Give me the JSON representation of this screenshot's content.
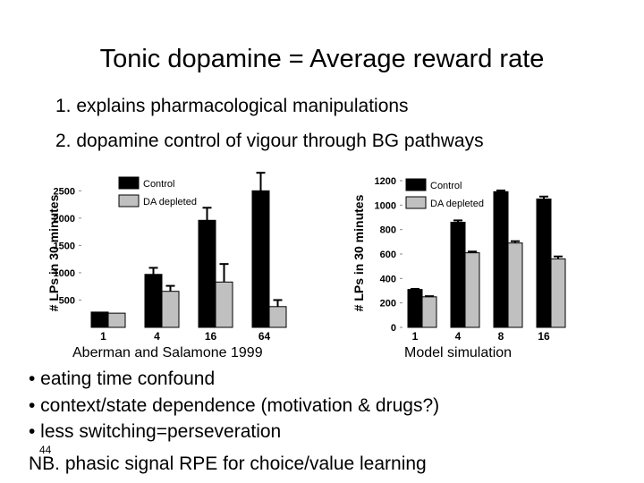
{
  "slide": {
    "title": "Tonic dopamine = Average reward rate",
    "subtitle_1": "1. explains pharmacological manipulations",
    "subtitle_2": "2. dopamine control of vigour through BG pathways",
    "bullets": [
      "• eating time confound",
      "• context/state dependence (motivation & drugs?)",
      "• less switching=perseveration"
    ],
    "page_number": "44",
    "note": "NB. phasic signal RPE for choice/value learning"
  },
  "chart_data": [
    {
      "type": "bar",
      "caption": "Aberman and Salamone 1999",
      "ylabel": "# LPs in 30 minutes",
      "xlabel": "",
      "categories": [
        "1",
        "4",
        "16",
        "64"
      ],
      "ylim": [
        0,
        2800
      ],
      "yticks": [
        500,
        1000,
        1500,
        2000,
        2500
      ],
      "series": [
        {
          "name": "Control",
          "color": "#000000",
          "values": [
            280,
            970,
            1960,
            2500
          ],
          "errors": [
            0,
            120,
            230,
            330
          ]
        },
        {
          "name": "DA depleted",
          "color": "#c0c0c0",
          "values": [
            260,
            660,
            830,
            380
          ],
          "errors": [
            0,
            100,
            330,
            120
          ]
        }
      ],
      "legend": "top-left"
    },
    {
      "type": "bar",
      "caption": "Model simulation",
      "ylabel": "# LPs in 30 minutes",
      "xlabel": "",
      "categories": [
        "1",
        "4",
        "8",
        "16"
      ],
      "ylim": [
        0,
        1200
      ],
      "yticks": [
        0,
        200,
        400,
        600,
        800,
        1000,
        1200
      ],
      "series": [
        {
          "name": "Control",
          "color": "#000000",
          "values": [
            310,
            860,
            1110,
            1050
          ],
          "errors": [
            5,
            15,
            10,
            20
          ]
        },
        {
          "name": "DA depleted",
          "color": "#c0c0c0",
          "values": [
            250,
            610,
            690,
            560
          ],
          "errors": [
            5,
            10,
            15,
            20
          ]
        }
      ],
      "legend": "top-left"
    }
  ]
}
